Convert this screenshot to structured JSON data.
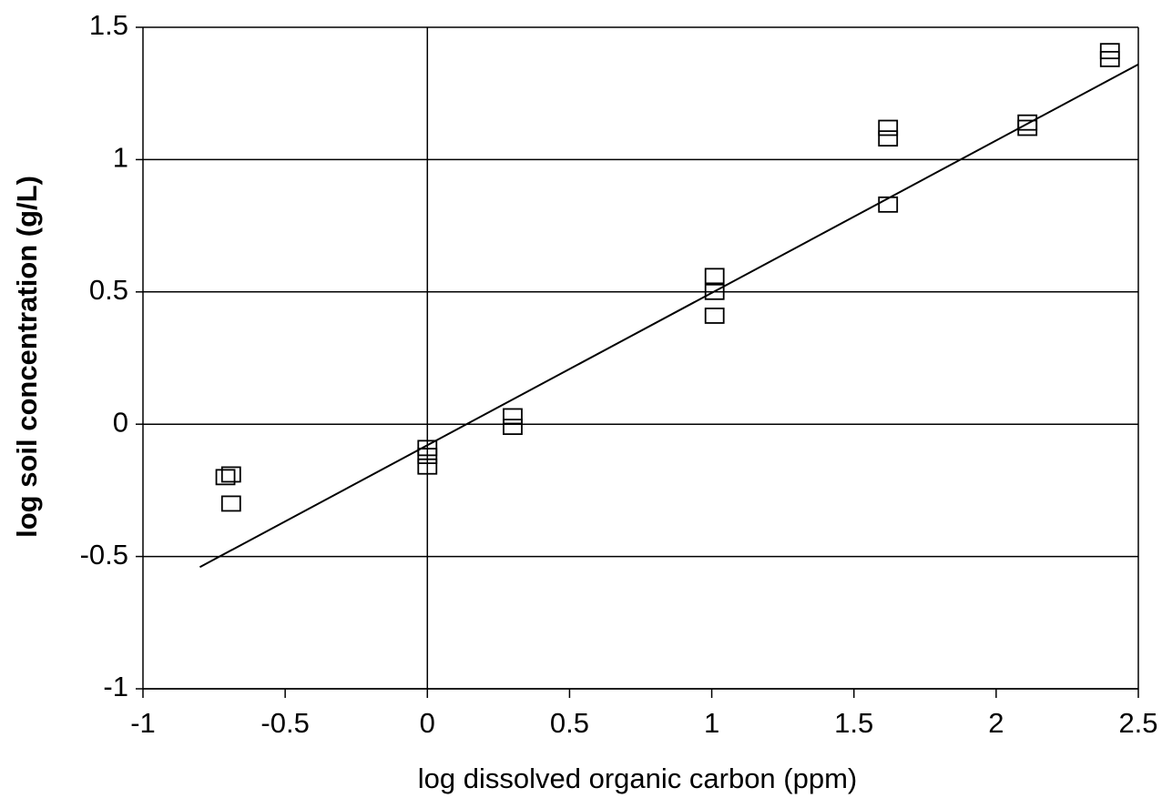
{
  "chart_data": {
    "type": "scatter",
    "xlabel": "log dissolved organic carbon (ppm)",
    "ylabel": "log soil concentration (g/L)",
    "x": [
      -0.71,
      -0.69,
      -0.69,
      0,
      0,
      0,
      0.3,
      0.3,
      1.01,
      1.01,
      1.01,
      1.62,
      1.62,
      1.62,
      2.11,
      2.11,
      2.4,
      2.4
    ],
    "values": [
      -0.2,
      -0.19,
      -0.3,
      -0.09,
      -0.12,
      -0.16,
      0.03,
      -0.01,
      0.56,
      0.5,
      0.41,
      1.12,
      1.08,
      0.83,
      1.14,
      1.12,
      1.41,
      1.38
    ],
    "color": "#000000",
    "fit_line": {
      "x": [
        -0.8,
        2.5
      ],
      "y": [
        -0.54,
        1.36
      ]
    },
    "xlim": [
      -1,
      2.5
    ],
    "xticks": [
      -1,
      -0.5,
      0,
      0.5,
      1,
      1.5,
      2,
      2.5
    ],
    "ylim": [
      -1,
      1.5
    ],
    "yticks": [
      -1,
      -0.5,
      0,
      0.5,
      1,
      1.5
    ],
    "grid": true,
    "xgrid": [
      0
    ]
  }
}
